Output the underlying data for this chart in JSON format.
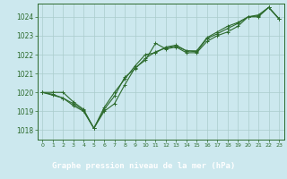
{
  "background_color": "#cce8ee",
  "plot_bg_color": "#cce8ee",
  "grid_color": "#aacccc",
  "line_color": "#2d6b2d",
  "title": "Graphe pression niveau de la mer (hPa)",
  "title_bg": "#2d6b2d",
  "title_fg": "#ffffff",
  "xlim": [
    -0.5,
    23.5
  ],
  "ylim": [
    1017.5,
    1024.7
  ],
  "yticks": [
    1018,
    1019,
    1020,
    1021,
    1022,
    1023,
    1024
  ],
  "xticks": [
    0,
    1,
    2,
    3,
    4,
    5,
    6,
    7,
    8,
    9,
    10,
    11,
    12,
    13,
    14,
    15,
    16,
    17,
    18,
    19,
    20,
    21,
    22,
    23
  ],
  "series1_x": [
    0,
    1,
    2,
    3,
    4,
    5,
    6,
    7,
    8,
    9,
    10,
    11,
    12,
    13,
    14,
    15,
    16,
    17,
    18,
    19,
    20,
    21,
    22,
    23
  ],
  "series1_y": [
    1020.0,
    1019.9,
    1019.7,
    1019.3,
    1019.0,
    1018.1,
    1019.0,
    1019.4,
    1020.4,
    1021.3,
    1021.7,
    1022.6,
    1022.3,
    1022.4,
    1022.1,
    1022.1,
    1022.7,
    1023.0,
    1023.2,
    1023.5,
    1024.0,
    1024.0,
    1024.5,
    1023.9
  ],
  "series2_x": [
    0,
    1,
    2,
    3,
    4,
    5,
    6,
    7,
    8,
    9,
    10,
    11,
    12,
    13,
    14,
    15,
    16,
    17,
    18,
    19,
    20,
    21,
    22,
    23
  ],
  "series2_y": [
    1020.0,
    1019.85,
    1019.7,
    1019.4,
    1019.05,
    1018.1,
    1019.1,
    1019.8,
    1020.8,
    1021.25,
    1021.8,
    1022.15,
    1022.35,
    1022.45,
    1022.2,
    1022.15,
    1022.85,
    1023.1,
    1023.38,
    1023.65,
    1024.0,
    1024.05,
    1024.5,
    1023.88
  ],
  "series3_x": [
    0,
    1,
    2,
    3,
    4,
    5,
    6,
    7,
    8,
    9,
    10,
    11,
    12,
    13,
    14,
    15,
    16,
    17,
    18,
    19,
    20,
    21,
    22,
    23
  ],
  "series3_y": [
    1020.0,
    1020.0,
    1020.0,
    1019.5,
    1019.1,
    1018.1,
    1019.2,
    1020.0,
    1020.7,
    1021.4,
    1022.0,
    1022.1,
    1022.4,
    1022.5,
    1022.2,
    1022.2,
    1022.9,
    1023.2,
    1023.5,
    1023.7,
    1024.0,
    1024.1,
    1024.5,
    1023.9
  ]
}
